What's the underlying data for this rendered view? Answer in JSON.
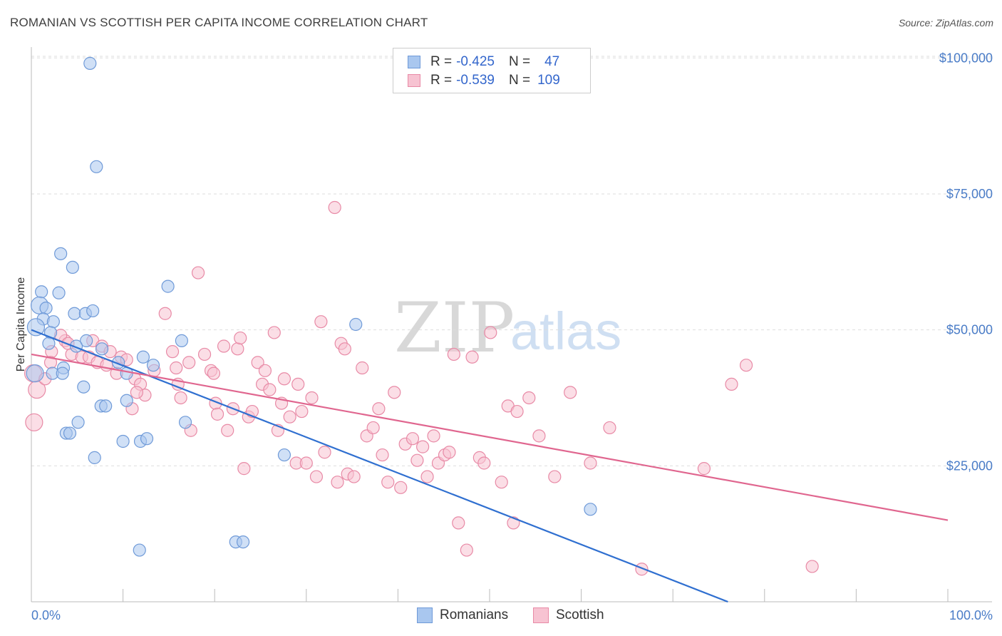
{
  "header": {
    "title": "ROMANIAN VS SCOTTISH PER CAPITA INCOME CORRELATION CHART",
    "source": "Source: ZipAtlas.com"
  },
  "watermark": {
    "zip": "ZIP",
    "atlas": "atlas"
  },
  "legend": {
    "rows": [
      {
        "r_label": "R =",
        "r_value": "-0.425",
        "n_label": "N =",
        "n_value": "47",
        "color": "#a9c7ef",
        "border": "#6f9ad8"
      },
      {
        "r_label": "R =",
        "r_value": "-0.539",
        "n_label": "N =",
        "n_value": "109",
        "color": "#f7c3d2",
        "border": "#e88aa6"
      }
    ]
  },
  "bottom_legend": [
    {
      "label": "Romanians",
      "color": "#a9c7ef",
      "border": "#6f9ad8"
    },
    {
      "label": "Scottish",
      "color": "#f7c3d2",
      "border": "#e88aa6"
    }
  ],
  "chart_data": {
    "type": "scatter",
    "ylabel": "Per Capita Income",
    "xlabel": "",
    "xlim": [
      0,
      100
    ],
    "ylim": [
      0,
      102000
    ],
    "x_tick_labels": [
      "0.0%",
      "100.0%"
    ],
    "y_ticks": [
      {
        "value": 25000,
        "label": "$25,000"
      },
      {
        "value": 50000,
        "label": "$50,000"
      },
      {
        "value": 75000,
        "label": "$75,000"
      },
      {
        "value": 100000,
        "label": "$100,000"
      }
    ],
    "grid": "horizontal dashed",
    "series": [
      {
        "name": "Romanians",
        "color": "#6f9ad8",
        "fill": "#a9c7ef",
        "trend": {
          "x": [
            0,
            76
          ],
          "y": [
            50000,
            0
          ],
          "color": "#2f6fd0"
        },
        "points": [
          [
            6.4,
            99000
          ],
          [
            7.1,
            80000
          ],
          [
            3.2,
            64000
          ],
          [
            4.5,
            61500
          ],
          [
            1.1,
            57000
          ],
          [
            3.0,
            56800
          ],
          [
            14.9,
            58000
          ],
          [
            0.9,
            54500
          ],
          [
            1.6,
            54000
          ],
          [
            4.7,
            53000
          ],
          [
            5.9,
            53000
          ],
          [
            6.7,
            53500
          ],
          [
            1.3,
            52000
          ],
          [
            2.4,
            51500
          ],
          [
            0.5,
            50500
          ],
          [
            35.4,
            51000
          ],
          [
            2.1,
            49500
          ],
          [
            6.0,
            48000
          ],
          [
            16.4,
            48000
          ],
          [
            1.9,
            47500
          ],
          [
            4.9,
            47000
          ],
          [
            7.7,
            46500
          ],
          [
            9.5,
            44000
          ],
          [
            12.2,
            45000
          ],
          [
            13.3,
            43500
          ],
          [
            0.4,
            42000
          ],
          [
            3.5,
            43000
          ],
          [
            2.3,
            42000
          ],
          [
            3.4,
            42000
          ],
          [
            10.4,
            42000
          ],
          [
            5.7,
            39500
          ],
          [
            10.4,
            37000
          ],
          [
            7.6,
            36000
          ],
          [
            8.1,
            36000
          ],
          [
            16.8,
            33000
          ],
          [
            5.1,
            33000
          ],
          [
            3.8,
            31000
          ],
          [
            4.2,
            31000
          ],
          [
            10.0,
            29500
          ],
          [
            11.9,
            29500
          ],
          [
            12.6,
            30000
          ],
          [
            6.9,
            26500
          ],
          [
            27.6,
            27000
          ],
          [
            61.0,
            17000
          ],
          [
            11.8,
            9500
          ],
          [
            22.3,
            11000
          ],
          [
            23.1,
            11000
          ]
        ]
      },
      {
        "name": "Scottish",
        "color": "#e88aa6",
        "fill": "#f7c3d2",
        "trend": {
          "x": [
            0,
            100
          ],
          "y": [
            45500,
            15000
          ],
          "color": "#e0668f"
        },
        "points": [
          [
            0.2,
            42000
          ],
          [
            0.6,
            39000
          ],
          [
            0.3,
            33000
          ],
          [
            2.2,
            46000
          ],
          [
            3.7,
            48000
          ],
          [
            3.2,
            49000
          ],
          [
            4.4,
            45500
          ],
          [
            5.5,
            45000
          ],
          [
            6.7,
            48000
          ],
          [
            6.3,
            45000
          ],
          [
            7.2,
            44000
          ],
          [
            7.7,
            47000
          ],
          [
            8.2,
            43500
          ],
          [
            9.3,
            42000
          ],
          [
            9.8,
            45000
          ],
          [
            10.4,
            44500
          ],
          [
            11.3,
            41000
          ],
          [
            11.9,
            40000
          ],
          [
            12.4,
            38000
          ],
          [
            11.5,
            38500
          ],
          [
            11.0,
            35500
          ],
          [
            14.6,
            53000
          ],
          [
            15.4,
            46000
          ],
          [
            15.8,
            43000
          ],
          [
            16.3,
            37500
          ],
          [
            17.2,
            44000
          ],
          [
            17.4,
            31500
          ],
          [
            18.2,
            60500
          ],
          [
            18.9,
            45500
          ],
          [
            19.6,
            42500
          ],
          [
            20.1,
            36500
          ],
          [
            20.3,
            34500
          ],
          [
            21.0,
            47000
          ],
          [
            21.4,
            31500
          ],
          [
            22.0,
            35500
          ],
          [
            22.5,
            46500
          ],
          [
            22.8,
            48500
          ],
          [
            23.2,
            24500
          ],
          [
            23.7,
            34000
          ],
          [
            24.1,
            35000
          ],
          [
            24.7,
            44000
          ],
          [
            25.2,
            40000
          ],
          [
            25.5,
            42500
          ],
          [
            26.0,
            39000
          ],
          [
            26.5,
            49500
          ],
          [
            26.9,
            31500
          ],
          [
            27.3,
            36500
          ],
          [
            27.6,
            41000
          ],
          [
            28.2,
            34000
          ],
          [
            28.9,
            25500
          ],
          [
            29.1,
            40000
          ],
          [
            29.5,
            35000
          ],
          [
            30.0,
            25500
          ],
          [
            30.6,
            37500
          ],
          [
            31.1,
            23000
          ],
          [
            31.6,
            51500
          ],
          [
            32.0,
            27500
          ],
          [
            33.1,
            72500
          ],
          [
            33.4,
            22000
          ],
          [
            33.8,
            47500
          ],
          [
            34.2,
            46500
          ],
          [
            34.5,
            23500
          ],
          [
            35.2,
            23000
          ],
          [
            36.1,
            43000
          ],
          [
            36.6,
            30500
          ],
          [
            37.3,
            32000
          ],
          [
            37.9,
            35500
          ],
          [
            38.3,
            27000
          ],
          [
            38.9,
            22000
          ],
          [
            39.6,
            38500
          ],
          [
            40.3,
            21000
          ],
          [
            40.8,
            29000
          ],
          [
            41.6,
            30000
          ],
          [
            42.1,
            26000
          ],
          [
            42.7,
            28500
          ],
          [
            43.2,
            23000
          ],
          [
            43.9,
            30500
          ],
          [
            44.4,
            25500
          ],
          [
            45.1,
            27000
          ],
          [
            45.6,
            27500
          ],
          [
            46.1,
            45500
          ],
          [
            46.6,
            14500
          ],
          [
            47.5,
            9500
          ],
          [
            48.1,
            45000
          ],
          [
            48.9,
            26500
          ],
          [
            49.4,
            25500
          ],
          [
            50.1,
            49500
          ],
          [
            51.3,
            22000
          ],
          [
            52.0,
            36000
          ],
          [
            52.6,
            14500
          ],
          [
            53.0,
            35000
          ],
          [
            54.3,
            37500
          ],
          [
            55.4,
            30500
          ],
          [
            57.1,
            23000
          ],
          [
            58.8,
            38500
          ],
          [
            61.0,
            25500
          ],
          [
            63.1,
            32000
          ],
          [
            66.6,
            6000
          ],
          [
            73.4,
            24500
          ],
          [
            76.4,
            40000
          ],
          [
            78.0,
            43500
          ],
          [
            85.2,
            6500
          ],
          [
            2.1,
            44000
          ],
          [
            4.0,
            47500
          ],
          [
            1.5,
            41000
          ],
          [
            8.6,
            46000
          ],
          [
            13.4,
            42500
          ],
          [
            16.0,
            40000
          ],
          [
            19.9,
            42000
          ]
        ]
      }
    ]
  }
}
